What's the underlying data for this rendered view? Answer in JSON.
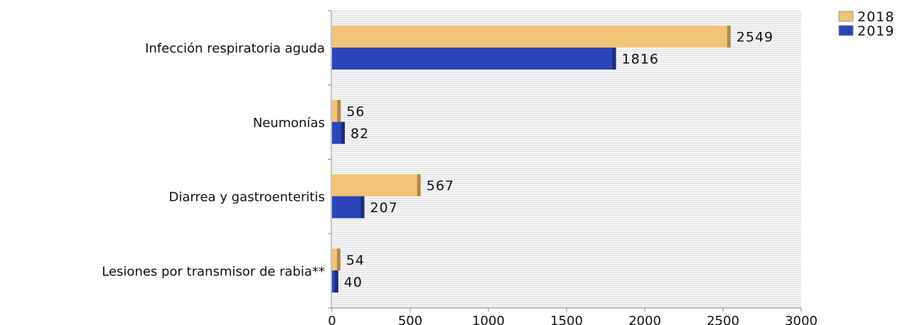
{
  "chart_data": {
    "type": "bar",
    "orientation": "horizontal",
    "categories": [
      "Infección respiratoria aguda",
      "Neumonías",
      "Diarrea y gastroenteritis",
      "Lesiones por transmisor de rabia**"
    ],
    "series": [
      {
        "name": "2018",
        "values": [
          2549,
          56,
          567,
          54
        ],
        "color": "#f2c477",
        "edge_color": "#b08a4a"
      },
      {
        "name": "2019",
        "values": [
          1816,
          82,
          207,
          40
        ],
        "color": "#2b45b8",
        "edge_color": "#1a2c80"
      }
    ],
    "xlim": [
      0,
      3000
    ],
    "xticks": [
      "0",
      "500",
      "1000",
      "1500",
      "2000",
      "2500",
      "3000"
    ],
    "xlabel": "",
    "ylabel": "",
    "title": "",
    "grid": "horizontal hatch background",
    "legend_position": "top-right"
  }
}
